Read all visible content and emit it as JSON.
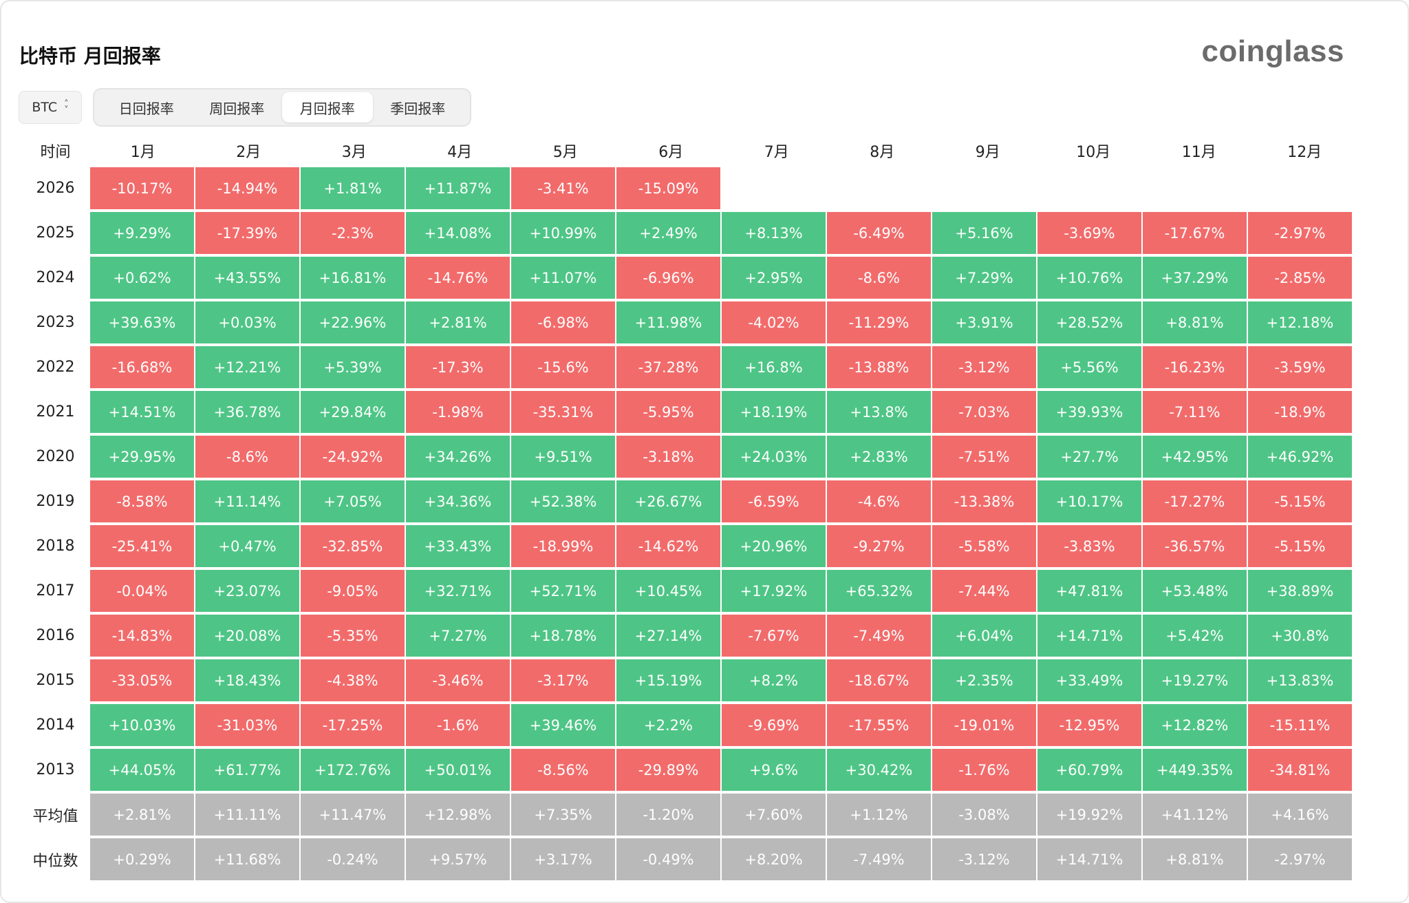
{
  "title": "比特币 月回报率",
  "logo": "coinglass",
  "asset": "BTC",
  "tabs": [
    {
      "label": "日回报率",
      "active": false
    },
    {
      "label": "周回报率",
      "active": false
    },
    {
      "label": "月回报率",
      "active": true
    },
    {
      "label": "季回报率",
      "active": false
    }
  ],
  "colors": {
    "positive": "#4ec586",
    "negative": "#f26b6b",
    "summary": "#b9b9b9"
  },
  "table": {
    "corner": "时间",
    "months": [
      "1月",
      "2月",
      "3月",
      "4月",
      "5月",
      "6月",
      "7月",
      "8月",
      "9月",
      "10月",
      "11月",
      "12月"
    ],
    "rows": [
      {
        "year": "2026",
        "values": [
          "-10.17%",
          "-14.94%",
          "+1.81%",
          "+11.87%",
          "-3.41%",
          "-15.09%",
          "",
          "",
          "",
          "",
          "",
          ""
        ]
      },
      {
        "year": "2025",
        "values": [
          "+9.29%",
          "-17.39%",
          "-2.3%",
          "+14.08%",
          "+10.99%",
          "+2.49%",
          "+8.13%",
          "-6.49%",
          "+5.16%",
          "-3.69%",
          "-17.67%",
          "-2.97%"
        ]
      },
      {
        "year": "2024",
        "values": [
          "+0.62%",
          "+43.55%",
          "+16.81%",
          "-14.76%",
          "+11.07%",
          "-6.96%",
          "+2.95%",
          "-8.6%",
          "+7.29%",
          "+10.76%",
          "+37.29%",
          "-2.85%"
        ]
      },
      {
        "year": "2023",
        "values": [
          "+39.63%",
          "+0.03%",
          "+22.96%",
          "+2.81%",
          "-6.98%",
          "+11.98%",
          "-4.02%",
          "-11.29%",
          "+3.91%",
          "+28.52%",
          "+8.81%",
          "+12.18%"
        ]
      },
      {
        "year": "2022",
        "values": [
          "-16.68%",
          "+12.21%",
          "+5.39%",
          "-17.3%",
          "-15.6%",
          "-37.28%",
          "+16.8%",
          "-13.88%",
          "-3.12%",
          "+5.56%",
          "-16.23%",
          "-3.59%"
        ]
      },
      {
        "year": "2021",
        "values": [
          "+14.51%",
          "+36.78%",
          "+29.84%",
          "-1.98%",
          "-35.31%",
          "-5.95%",
          "+18.19%",
          "+13.8%",
          "-7.03%",
          "+39.93%",
          "-7.11%",
          "-18.9%"
        ]
      },
      {
        "year": "2020",
        "values": [
          "+29.95%",
          "-8.6%",
          "-24.92%",
          "+34.26%",
          "+9.51%",
          "-3.18%",
          "+24.03%",
          "+2.83%",
          "-7.51%",
          "+27.7%",
          "+42.95%",
          "+46.92%"
        ]
      },
      {
        "year": "2019",
        "values": [
          "-8.58%",
          "+11.14%",
          "+7.05%",
          "+34.36%",
          "+52.38%",
          "+26.67%",
          "-6.59%",
          "-4.6%",
          "-13.38%",
          "+10.17%",
          "-17.27%",
          "-5.15%"
        ]
      },
      {
        "year": "2018",
        "values": [
          "-25.41%",
          "+0.47%",
          "-32.85%",
          "+33.43%",
          "-18.99%",
          "-14.62%",
          "+20.96%",
          "-9.27%",
          "-5.58%",
          "-3.83%",
          "-36.57%",
          "-5.15%"
        ]
      },
      {
        "year": "2017",
        "values": [
          "-0.04%",
          "+23.07%",
          "-9.05%",
          "+32.71%",
          "+52.71%",
          "+10.45%",
          "+17.92%",
          "+65.32%",
          "-7.44%",
          "+47.81%",
          "+53.48%",
          "+38.89%"
        ]
      },
      {
        "year": "2016",
        "values": [
          "-14.83%",
          "+20.08%",
          "-5.35%",
          "+7.27%",
          "+18.78%",
          "+27.14%",
          "-7.67%",
          "-7.49%",
          "+6.04%",
          "+14.71%",
          "+5.42%",
          "+30.8%"
        ]
      },
      {
        "year": "2015",
        "values": [
          "-33.05%",
          "+18.43%",
          "-4.38%",
          "-3.46%",
          "-3.17%",
          "+15.19%",
          "+8.2%",
          "-18.67%",
          "+2.35%",
          "+33.49%",
          "+19.27%",
          "+13.83%"
        ]
      },
      {
        "year": "2014",
        "values": [
          "+10.03%",
          "-31.03%",
          "-17.25%",
          "-1.6%",
          "+39.46%",
          "+2.2%",
          "-9.69%",
          "-17.55%",
          "-19.01%",
          "-12.95%",
          "+12.82%",
          "-15.11%"
        ]
      },
      {
        "year": "2013",
        "values": [
          "+44.05%",
          "+61.77%",
          "+172.76%",
          "+50.01%",
          "-8.56%",
          "-29.89%",
          "+9.6%",
          "+30.42%",
          "-1.76%",
          "+60.79%",
          "+449.35%",
          "-34.81%"
        ]
      }
    ],
    "summary": [
      {
        "label": "平均值",
        "values": [
          "+2.81%",
          "+11.11%",
          "+11.47%",
          "+12.98%",
          "+7.35%",
          "-1.20%",
          "+7.60%",
          "+1.12%",
          "-3.08%",
          "+19.92%",
          "+41.12%",
          "+4.16%"
        ]
      },
      {
        "label": "中位数",
        "values": [
          "+0.29%",
          "+11.68%",
          "-0.24%",
          "+9.57%",
          "+3.17%",
          "-0.49%",
          "+8.20%",
          "-7.49%",
          "-3.12%",
          "+14.71%",
          "+8.81%",
          "-2.97%"
        ]
      }
    ]
  }
}
